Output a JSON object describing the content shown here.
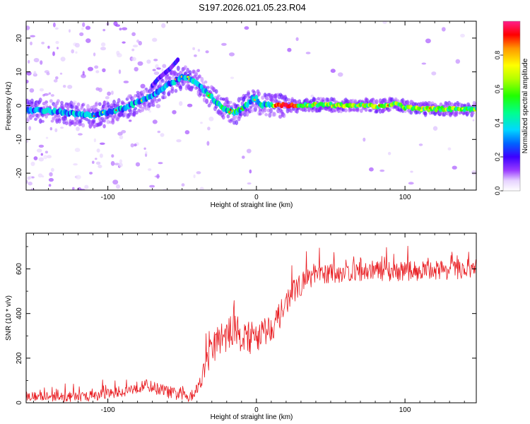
{
  "figure_title": "S197.2026.021.05.23.R04",
  "chart_data": [
    {
      "type": "heatmap",
      "title": "S197.2026.021.05.23.R04",
      "xlabel": "Height of straight line (km)",
      "ylabel": "Frequency (Hz)",
      "xlim": [
        -155,
        148
      ],
      "ylim": [
        -25,
        25
      ],
      "x_ticks": [
        -100,
        0,
        100
      ],
      "x_tick_labels": [
        "-100",
        "0",
        "100"
      ],
      "y_ticks": [
        -20,
        -10,
        0,
        10,
        20
      ],
      "y_tick_labels": [
        "-20",
        "-10",
        "0",
        "10",
        "20"
      ],
      "ridge": {
        "name": "peak frequency track",
        "x": [
          -155,
          -140,
          -130,
          -120,
          -110,
          -100,
          -90,
          -80,
          -70,
          -62,
          -56,
          -50,
          -45,
          -40,
          -35,
          -30,
          -26,
          -22,
          -18,
          -14,
          -10,
          -6,
          -3,
          0,
          3,
          6,
          10,
          20,
          30,
          40,
          50,
          60,
          70,
          80,
          90,
          95,
          100,
          110,
          120,
          130,
          148
        ],
        "y": [
          -1.5,
          -1.5,
          -2,
          -2.5,
          -3,
          -2,
          -1,
          1,
          3,
          5.5,
          7,
          8.5,
          8,
          6.5,
          4.5,
          2.5,
          0.5,
          -1,
          -1.5,
          -2,
          -1,
          0.5,
          2,
          2,
          0,
          0.3,
          0.3,
          0.2,
          0,
          0.3,
          0.2,
          0,
          0.2,
          -0.2,
          0.3,
          0.5,
          -0.5,
          -1,
          -1,
          -1,
          -1
        ]
      },
      "side_branch": {
        "name": "upper branch",
        "x": [
          -70,
          -66,
          -62,
          -58,
          -55,
          -52
        ],
        "y": [
          6,
          8,
          9.5,
          11,
          12.5,
          14
        ]
      },
      "colorbar": {
        "label": "Normalized spectral amplitude",
        "range": [
          0,
          1
        ],
        "ticks": [
          0.0,
          0.2,
          0.4,
          0.6,
          0.8
        ],
        "tick_labels": [
          "0.0",
          "0.2",
          "0.4",
          "0.6",
          "0.8"
        ]
      }
    },
    {
      "type": "line",
      "xlabel": "Height of straight line (km)",
      "ylabel": "SNR (10 * v/v)",
      "xlim": [
        -155,
        148
      ],
      "ylim": [
        0,
        760
      ],
      "x_ticks": [
        -100,
        0,
        100
      ],
      "x_tick_labels": [
        "-100",
        "0",
        "100"
      ],
      "y_ticks": [
        0,
        200,
        400,
        600
      ],
      "y_tick_labels": [
        "0",
        "200",
        "400",
        "600"
      ],
      "color": "#e8191e",
      "series": [
        {
          "name": "SNR",
          "trend_x": [
            -155,
            -130,
            -110,
            -95,
            -85,
            -75,
            -65,
            -55,
            -45,
            -40,
            -35,
            -30,
            -25,
            -20,
            -15,
            -10,
            -5,
            0,
            5,
            10,
            15,
            20,
            25,
            30,
            35,
            40,
            50,
            60,
            80,
            100,
            120,
            148
          ],
          "trend_y": [
            30,
            25,
            30,
            45,
            60,
            80,
            60,
            40,
            30,
            60,
            150,
            230,
            290,
            300,
            330,
            300,
            290,
            300,
            320,
            340,
            380,
            450,
            500,
            530,
            560,
            570,
            580,
            585,
            590,
            590,
            595,
            600
          ],
          "noise_amplitude_x": [
            -155,
            -40,
            -30,
            0,
            20,
            40,
            148
          ],
          "noise_amplitude_y": [
            40,
            60,
            140,
            150,
            110,
            90,
            90
          ]
        }
      ]
    }
  ]
}
